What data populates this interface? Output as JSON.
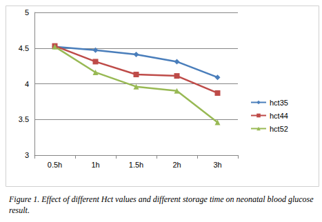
{
  "chart_data": {
    "type": "line",
    "title": "Figure 1. Effect of different Hct values and different storage time on neonatal blood glucose result.",
    "categories": [
      "0.5h",
      "1h",
      "1.5h",
      "2h",
      "3h"
    ],
    "series": [
      {
        "name": "hct35",
        "color": "#4a7ebb",
        "marker": "diamond",
        "values": [
          4.52,
          4.47,
          4.41,
          4.31,
          4.09
        ]
      },
      {
        "name": "hct44",
        "color": "#be4b48",
        "marker": "square",
        "values": [
          4.53,
          4.31,
          4.13,
          4.11,
          3.87
        ]
      },
      {
        "name": "hct52",
        "color": "#98b954",
        "marker": "triangle",
        "values": [
          4.52,
          4.16,
          3.96,
          3.9,
          3.46
        ]
      }
    ],
    "ylim": [
      3,
      5
    ],
    "yticks": [
      3,
      3.5,
      4,
      4.5,
      5
    ],
    "grid": true,
    "legend": "right"
  }
}
